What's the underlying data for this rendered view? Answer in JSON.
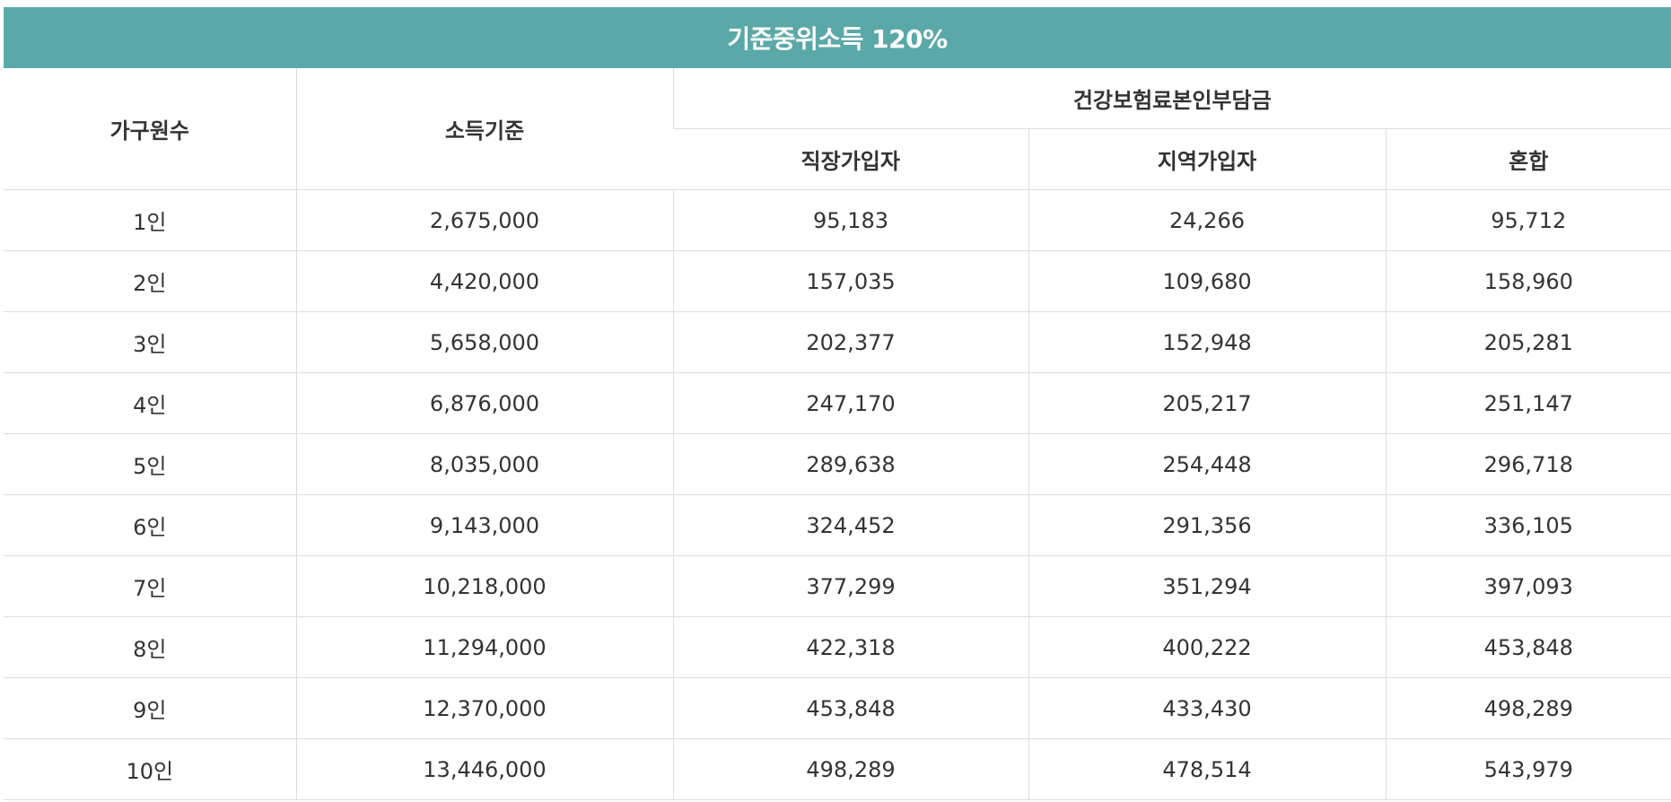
{
  "title": "기준중위소득 120%",
  "headers": {
    "household": "가구원수",
    "income": "소득기준",
    "premium_group": "건강보험료본인부담금",
    "employee": "직장가입자",
    "regional": "지역가입자",
    "mixed": "혼합"
  },
  "rows": [
    {
      "household": "1인",
      "income": "2,675,000",
      "employee": "95,183",
      "regional": "24,266",
      "mixed": "95,712"
    },
    {
      "household": "2인",
      "income": "4,420,000",
      "employee": "157,035",
      "regional": "109,680",
      "mixed": "158,960"
    },
    {
      "household": "3인",
      "income": "5,658,000",
      "employee": "202,377",
      "regional": "152,948",
      "mixed": "205,281"
    },
    {
      "household": "4인",
      "income": "6,876,000",
      "employee": "247,170",
      "regional": "205,217",
      "mixed": "251,147"
    },
    {
      "household": "5인",
      "income": "8,035,000",
      "employee": "289,638",
      "regional": "254,448",
      "mixed": "296,718"
    },
    {
      "household": "6인",
      "income": "9,143,000",
      "employee": "324,452",
      "regional": "291,356",
      "mixed": "336,105"
    },
    {
      "household": "7인",
      "income": "10,218,000",
      "employee": "377,299",
      "regional": "351,294",
      "mixed": "397,093"
    },
    {
      "household": "8인",
      "income": "11,294,000",
      "employee": "422,318",
      "regional": "400,222",
      "mixed": "453,848"
    },
    {
      "household": "9인",
      "income": "12,370,000",
      "employee": "453,848",
      "regional": "433,430",
      "mixed": "498,289"
    },
    {
      "household": "10인",
      "income": "13,446,000",
      "employee": "498,289",
      "regional": "478,514",
      "mixed": "543,979"
    }
  ]
}
